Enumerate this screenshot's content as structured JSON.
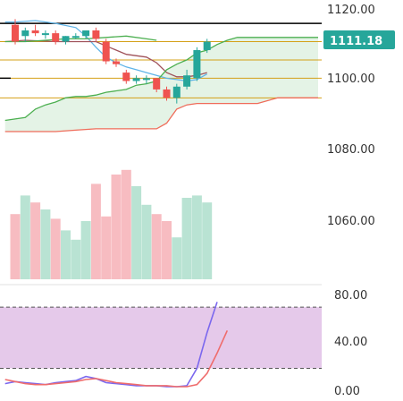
{
  "chart_data": [
    {
      "type": "candlestick",
      "panel": "price",
      "y_range": [
        1072,
        1122
      ],
      "y_ticks": [
        "1120.00",
        "1100.00",
        "1080.00",
        "1060.00"
      ],
      "last_price_label": "1111.18",
      "colors": {
        "up": "#26a69a",
        "down": "#ef5350",
        "tag": "#26a69a",
        "cloud": "#e4f3e6"
      },
      "candles": [
        {
          "o": 1117,
          "h": 1119,
          "l": 1110,
          "c": 1111
        },
        {
          "o": 1113,
          "h": 1116,
          "l": 1111,
          "c": 1115
        },
        {
          "o": 1115,
          "h": 1117,
          "l": 1113,
          "c": 1114
        },
        {
          "o": 1114,
          "h": 1115,
          "l": 1112,
          "c": 1114
        },
        {
          "o": 1114,
          "h": 1115,
          "l": 1110,
          "c": 1111
        },
        {
          "o": 1111,
          "h": 1113,
          "l": 1110,
          "c": 1113
        },
        {
          "o": 1113,
          "h": 1114,
          "l": 1112,
          "c": 1113
        },
        {
          "o": 1113,
          "h": 1115,
          "l": 1112,
          "c": 1115
        },
        {
          "o": 1115,
          "h": 1116,
          "l": 1111,
          "c": 1112
        },
        {
          "o": 1111,
          "h": 1112,
          "l": 1103,
          "c": 1104
        },
        {
          "o": 1104,
          "h": 1105,
          "l": 1102,
          "c": 1103
        },
        {
          "o": 1100,
          "h": 1101,
          "l": 1096,
          "c": 1097
        },
        {
          "o": 1097,
          "h": 1099,
          "l": 1096,
          "c": 1098
        },
        {
          "o": 1098,
          "h": 1099,
          "l": 1096,
          "c": 1098
        },
        {
          "o": 1098,
          "h": 1098,
          "l": 1093,
          "c": 1094
        },
        {
          "o": 1094,
          "h": 1095,
          "l": 1090,
          "c": 1091
        },
        {
          "o": 1091,
          "h": 1096,
          "l": 1089,
          "c": 1095
        },
        {
          "o": 1095,
          "h": 1101,
          "l": 1094,
          "c": 1099
        },
        {
          "o": 1098,
          "h": 1109,
          "l": 1097,
          "c": 1108
        },
        {
          "o": 1108,
          "h": 1112,
          "l": 1107,
          "c": 1111
        }
      ],
      "horizontal_lines": [
        {
          "y": 1117.5,
          "color": "#000000"
        },
        {
          "y": 1111.0,
          "color": "#d4a017"
        },
        {
          "y": 1104.5,
          "color": "#d4a017"
        },
        {
          "y": 1098.0,
          "color": "#d4a017"
        },
        {
          "y": 1091.0,
          "color": "#d4a017"
        }
      ],
      "lines": {
        "blue": {
          "color": "#5fb4e8",
          "points": [
            [
              -1,
              1118
            ],
            [
              0,
              1118
            ],
            [
              2,
              1118.5
            ],
            [
              4,
              1117.5
            ],
            [
              6,
              1116
            ],
            [
              7,
              1113
            ],
            [
              8,
              1109
            ],
            [
              9,
              1105.5
            ],
            [
              10,
              1103.5
            ],
            [
              11,
              1102
            ],
            [
              12,
              1101
            ],
            [
              13,
              1100
            ],
            [
              14,
              1099
            ],
            [
              15,
              1098
            ],
            [
              16,
              1097.5
            ],
            [
              17,
              1097
            ],
            [
              18,
              1097.5
            ],
            [
              19,
              1099.5
            ]
          ]
        },
        "brown": {
          "color": "#a0525a",
          "points": [
            [
              -1,
              1111
            ],
            [
              1,
              1111.5
            ],
            [
              4,
              1111
            ],
            [
              6,
              1111
            ],
            [
              8,
              1111
            ],
            [
              9,
              1109.5
            ],
            [
              10,
              1108
            ],
            [
              11,
              1106.5
            ],
            [
              13,
              1105.5
            ],
            [
              14,
              1103.5
            ],
            [
              15,
              1100
            ],
            [
              16,
              1098.5
            ],
            [
              17,
              1098.5
            ],
            [
              18,
              1099
            ],
            [
              19,
              1100
            ]
          ]
        },
        "green": {
          "color": "#4caf50",
          "points": [
            [
              -1,
              1083
            ],
            [
              0,
              1083.5
            ],
            [
              1,
              1084
            ],
            [
              2,
              1087
            ],
            [
              3,
              1088.5
            ],
            [
              4,
              1089.5
            ],
            [
              5,
              1091
            ],
            [
              6,
              1091.5
            ],
            [
              7,
              1091.5
            ],
            [
              8,
              1092
            ],
            [
              9,
              1093
            ],
            [
              10,
              1093.5
            ],
            [
              11,
              1094
            ],
            [
              12,
              1095.5
            ],
            [
              13,
              1096
            ],
            [
              14,
              1097
            ],
            [
              15,
              1101
            ],
            [
              16,
              1103
            ],
            [
              17,
              1104.5
            ],
            [
              18,
              1107
            ],
            [
              19,
              1108
            ],
            [
              20,
              1110
            ],
            [
              21,
              1111.5
            ],
            [
              22,
              1112.5
            ],
            [
              24,
              1112.5
            ],
            [
              26,
              1112.5
            ],
            [
              28,
              1112.5
            ],
            [
              30,
              1112.5
            ]
          ]
        },
        "red": {
          "color": "#ef6c5a",
          "points": [
            [
              -1,
              1079
            ],
            [
              2,
              1079
            ],
            [
              4,
              1079
            ],
            [
              6,
              1079.5
            ],
            [
              8,
              1080
            ],
            [
              10,
              1080
            ],
            [
              12,
              1080
            ],
            [
              14,
              1080
            ],
            [
              15,
              1082
            ],
            [
              16,
              1087
            ],
            [
              17,
              1088.5
            ],
            [
              18,
              1089
            ],
            [
              20,
              1089
            ],
            [
              22,
              1089
            ],
            [
              24,
              1089
            ],
            [
              26,
              1091
            ],
            [
              28,
              1091
            ],
            [
              30,
              1091
            ]
          ]
        },
        "green_small": {
          "color": "#4caf50",
          "points": [
            [
              -1,
              1111
            ],
            [
              1,
              1111
            ],
            [
              3,
              1111.5
            ],
            [
              5,
              1112
            ],
            [
              7,
              1112
            ],
            [
              9,
              1112.5
            ],
            [
              11,
              1113
            ],
            [
              13,
              1112
            ],
            [
              14,
              1111.5
            ]
          ]
        }
      }
    },
    {
      "type": "bar",
      "panel": "volume",
      "y_ticks": [],
      "values": [
        28,
        36,
        33,
        30,
        26,
        21,
        17,
        25,
        41,
        27,
        45,
        47,
        40,
        32,
        28,
        25,
        18,
        35,
        36,
        33
      ]
    },
    {
      "type": "line",
      "panel": "oscillator",
      "y_range": [
        -5,
        95
      ],
      "y_ticks": [
        "80.00",
        "40.00",
        "0.00"
      ],
      "bands": [
        20,
        80
      ],
      "series": [
        {
          "color": "#7b68ee",
          "points": [
            [
              -1,
              5
            ],
            [
              0,
              7
            ],
            [
              1,
              6
            ],
            [
              2,
              5
            ],
            [
              3,
              4
            ],
            [
              4,
              6
            ],
            [
              5,
              7
            ],
            [
              6,
              8
            ],
            [
              7,
              12
            ],
            [
              8,
              10
            ],
            [
              9,
              6
            ],
            [
              10,
              5
            ],
            [
              11,
              4
            ],
            [
              12,
              3
            ],
            [
              13,
              3
            ],
            [
              14,
              3
            ],
            [
              15,
              2
            ],
            [
              16,
              2
            ],
            [
              17,
              3
            ],
            [
              18,
              20
            ],
            [
              19,
              55
            ],
            [
              20,
              85
            ]
          ]
        },
        {
          "color": "#ef6c6c",
          "points": [
            [
              -1,
              9
            ],
            [
              0,
              7
            ],
            [
              1,
              5
            ],
            [
              2,
              4
            ],
            [
              3,
              4
            ],
            [
              4,
              5
            ],
            [
              5,
              6
            ],
            [
              6,
              7
            ],
            [
              7,
              9
            ],
            [
              8,
              10
            ],
            [
              9,
              8
            ],
            [
              10,
              6
            ],
            [
              11,
              5
            ],
            [
              12,
              4
            ],
            [
              13,
              3
            ],
            [
              14,
              3
            ],
            [
              15,
              3
            ],
            [
              16,
              2
            ],
            [
              17,
              2
            ],
            [
              18,
              4
            ],
            [
              19,
              15
            ],
            [
              20,
              35
            ],
            [
              21,
              57
            ]
          ]
        }
      ]
    }
  ]
}
